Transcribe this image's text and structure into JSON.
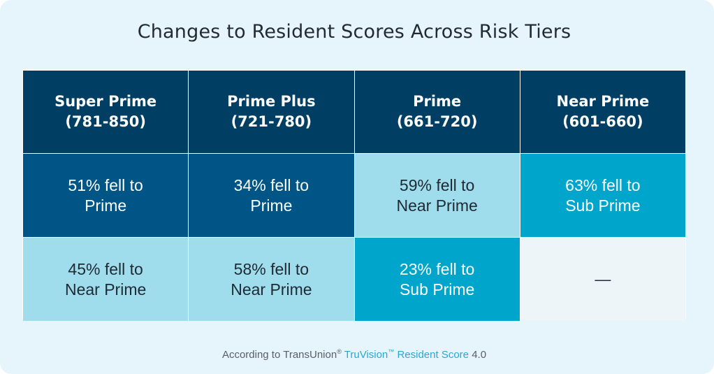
{
  "title": "Changes to Resident Scores Across Risk Tiers",
  "colors": {
    "background": "#e6f5fb",
    "header": "#003f63",
    "dark_blue": "#005587",
    "light_blue": "#9fdcec",
    "teal": "#00a5cc",
    "empty": "#edf5f8",
    "brand_text": "#2aa7d1"
  },
  "chart_data": {
    "type": "table",
    "title": "Changes to Resident Scores Across Risk Tiers",
    "columns": [
      {
        "tier": "Super Prime",
        "range": "(781-850)"
      },
      {
        "tier": "Prime Plus",
        "range": "(721-780)"
      },
      {
        "tier": "Prime",
        "range": "(661-720)"
      },
      {
        "tier": "Near Prime",
        "range": "(601-660)"
      }
    ],
    "rows": [
      [
        {
          "line1": "51% fell to",
          "line2": "Prime",
          "percent": 51,
          "to_tier": "Prime",
          "style": "dark"
        },
        {
          "line1": "34% fell to",
          "line2": "Prime",
          "percent": 34,
          "to_tier": "Prime",
          "style": "dark"
        },
        {
          "line1": "59% fell to",
          "line2": "Near Prime",
          "percent": 59,
          "to_tier": "Near Prime",
          "style": "light"
        },
        {
          "line1": "63% fell to",
          "line2": "Sub Prime",
          "percent": 63,
          "to_tier": "Sub Prime",
          "style": "teal"
        }
      ],
      [
        {
          "line1": "45% fell to",
          "line2": "Near Prime",
          "percent": 45,
          "to_tier": "Near Prime",
          "style": "light"
        },
        {
          "line1": "58% fell to",
          "line2": "Near Prime",
          "percent": 58,
          "to_tier": "Near Prime",
          "style": "light"
        },
        {
          "line1": "23% fell to",
          "line2": "Sub Prime",
          "percent": 23,
          "to_tier": "Sub Prime",
          "style": "teal"
        },
        {
          "line1": "—",
          "line2": "",
          "percent": null,
          "to_tier": "",
          "style": "none"
        }
      ]
    ]
  },
  "footnote": {
    "prefix": "According to TransUnion",
    "reg": "®",
    "brand": "TruVision",
    "tm": "™",
    "product": "Resident Score",
    "version": "4.0"
  }
}
